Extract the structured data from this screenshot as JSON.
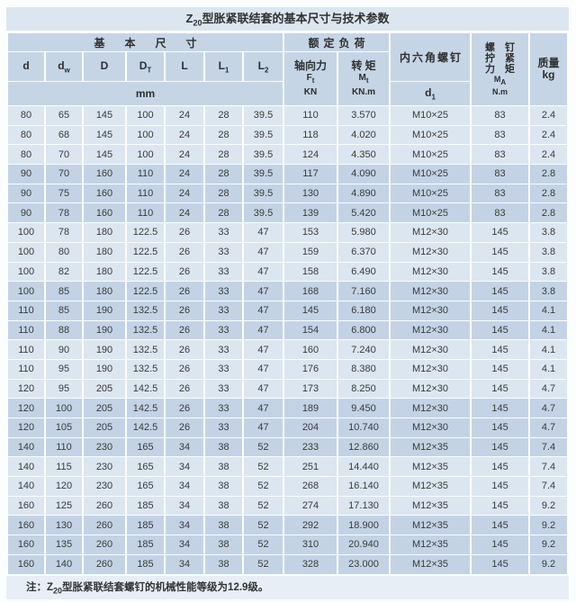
{
  "title": {
    "prefix": "Z",
    "sub": "20",
    "rest": "型胀紧联结套的基本尺寸与技术参数"
  },
  "header": {
    "basic_dims": "基本尺寸",
    "rated_load": "额定负荷",
    "hex_screw": "内六角螺钉",
    "screw_torque": {
      "line1": "螺 钉",
      "line2": "拧 紧",
      "line3": "力 矩",
      "sym_base": "M",
      "sym_sub": "A",
      "unit": "N.m"
    },
    "mass": {
      "label": "质量",
      "unit": "kg"
    },
    "col_d": {
      "base": "d",
      "sub": ""
    },
    "col_dw": {
      "base": "d",
      "sub": "w"
    },
    "col_D": {
      "base": "D",
      "sub": ""
    },
    "col_DT": {
      "base": "D",
      "sub": "T"
    },
    "col_L": {
      "base": "L",
      "sub": ""
    },
    "col_L1": {
      "base": "L",
      "sub": "1"
    },
    "col_L2": {
      "base": "L",
      "sub": "2"
    },
    "axial": {
      "label": "轴向力",
      "sym_base": "F",
      "sym_sub": "t",
      "unit": "KN"
    },
    "torque": {
      "label": "转 矩",
      "sym_base": "M",
      "sym_sub": "t",
      "unit": "KN.m"
    },
    "mm_unit": "mm",
    "col_d1": {
      "base": "d",
      "sub": "1"
    }
  },
  "table": {
    "col_keys": [
      "d",
      "dw",
      "D",
      "DT",
      "L",
      "L1",
      "L2",
      "Ft",
      "Mt",
      "screw",
      "MA",
      "mass"
    ],
    "rows": [
      [
        "80",
        "65",
        "145",
        "100",
        "24",
        "28",
        "39.5",
        "110",
        "3.570",
        "M10×25",
        "83",
        "2.4"
      ],
      [
        "80",
        "68",
        "145",
        "100",
        "24",
        "28",
        "39.5",
        "118",
        "4.020",
        "M10×25",
        "83",
        "2.4"
      ],
      [
        "80",
        "70",
        "145",
        "100",
        "24",
        "28",
        "39.5",
        "124",
        "4.350",
        "M10×25",
        "83",
        "2.4"
      ],
      [
        "90",
        "70",
        "160",
        "110",
        "24",
        "28",
        "39.5",
        "117",
        "4.090",
        "M10×25",
        "83",
        "2.8"
      ],
      [
        "90",
        "75",
        "160",
        "110",
        "24",
        "28",
        "39.5",
        "130",
        "4.890",
        "M10×25",
        "83",
        "2.8"
      ],
      [
        "90",
        "78",
        "160",
        "110",
        "24",
        "28",
        "39.5",
        "139",
        "5.420",
        "M10×25",
        "83",
        "2.8"
      ],
      [
        "100",
        "78",
        "180",
        "122.5",
        "26",
        "33",
        "47",
        "153",
        "5.980",
        "M12×30",
        "145",
        "3.8"
      ],
      [
        "100",
        "80",
        "180",
        "122.5",
        "26",
        "33",
        "47",
        "159",
        "6.370",
        "M12×30",
        "145",
        "3.8"
      ],
      [
        "100",
        "82",
        "180",
        "122.5",
        "26",
        "33",
        "47",
        "158",
        "6.490",
        "M12×30",
        "145",
        "3.8"
      ],
      [
        "100",
        "85",
        "180",
        "122.5",
        "26",
        "33",
        "47",
        "168",
        "7.160",
        "M12×30",
        "145",
        "3.8"
      ],
      [
        "110",
        "85",
        "190",
        "132.5",
        "26",
        "33",
        "47",
        "145",
        "6.180",
        "M12×30",
        "145",
        "4.1"
      ],
      [
        "110",
        "88",
        "190",
        "132.5",
        "26",
        "33",
        "47",
        "154",
        "6.800",
        "M12×30",
        "145",
        "4.1"
      ],
      [
        "110",
        "90",
        "190",
        "132.5",
        "26",
        "33",
        "47",
        "160",
        "7.240",
        "M12×30",
        "145",
        "4.1"
      ],
      [
        "110",
        "95",
        "190",
        "132.5",
        "26",
        "33",
        "47",
        "176",
        "8.380",
        "M12×30",
        "145",
        "4.1"
      ],
      [
        "120",
        "95",
        "205",
        "142.5",
        "26",
        "33",
        "47",
        "173",
        "8.250",
        "M12×30",
        "145",
        "4.7"
      ],
      [
        "120",
        "100",
        "205",
        "142.5",
        "26",
        "33",
        "47",
        "189",
        "9.450",
        "M12×30",
        "145",
        "4.7"
      ],
      [
        "120",
        "105",
        "205",
        "142.5",
        "26",
        "33",
        "47",
        "204",
        "10.740",
        "M12×30",
        "145",
        "4.7"
      ],
      [
        "140",
        "110",
        "230",
        "165",
        "34",
        "38",
        "52",
        "233",
        "12.860",
        "M12×35",
        "145",
        "7.4"
      ],
      [
        "140",
        "115",
        "230",
        "165",
        "34",
        "38",
        "52",
        "251",
        "14.440",
        "M12×35",
        "145",
        "7.4"
      ],
      [
        "140",
        "120",
        "230",
        "165",
        "34",
        "38",
        "52",
        "268",
        "16.140",
        "M12×35",
        "145",
        "7.4"
      ],
      [
        "160",
        "125",
        "260",
        "185",
        "34",
        "38",
        "52",
        "274",
        "17.130",
        "M12×35",
        "145",
        "9.2"
      ],
      [
        "160",
        "130",
        "260",
        "185",
        "34",
        "38",
        "52",
        "292",
        "18.900",
        "M12×35",
        "145",
        "9.2"
      ],
      [
        "160",
        "135",
        "260",
        "185",
        "34",
        "38",
        "52",
        "310",
        "20.940",
        "M12×35",
        "145",
        "9.2"
      ],
      [
        "160",
        "140",
        "260",
        "185",
        "34",
        "38",
        "52",
        "328",
        "23.000",
        "M12×35",
        "145",
        "9.2"
      ]
    ]
  },
  "note": {
    "prefix": "注：Z",
    "sub": "20",
    "rest": "型胀紧联结套螺钉的机械性能等级为12.9级。"
  },
  "colors": {
    "title_bg": "#dce6f0",
    "header_bg": "#c6d5e6",
    "band_light": "#dbe6f0",
    "band_dark": "#c3d3e5",
    "note_bg": "#e7eef5",
    "text": "#3a3a3a"
  }
}
